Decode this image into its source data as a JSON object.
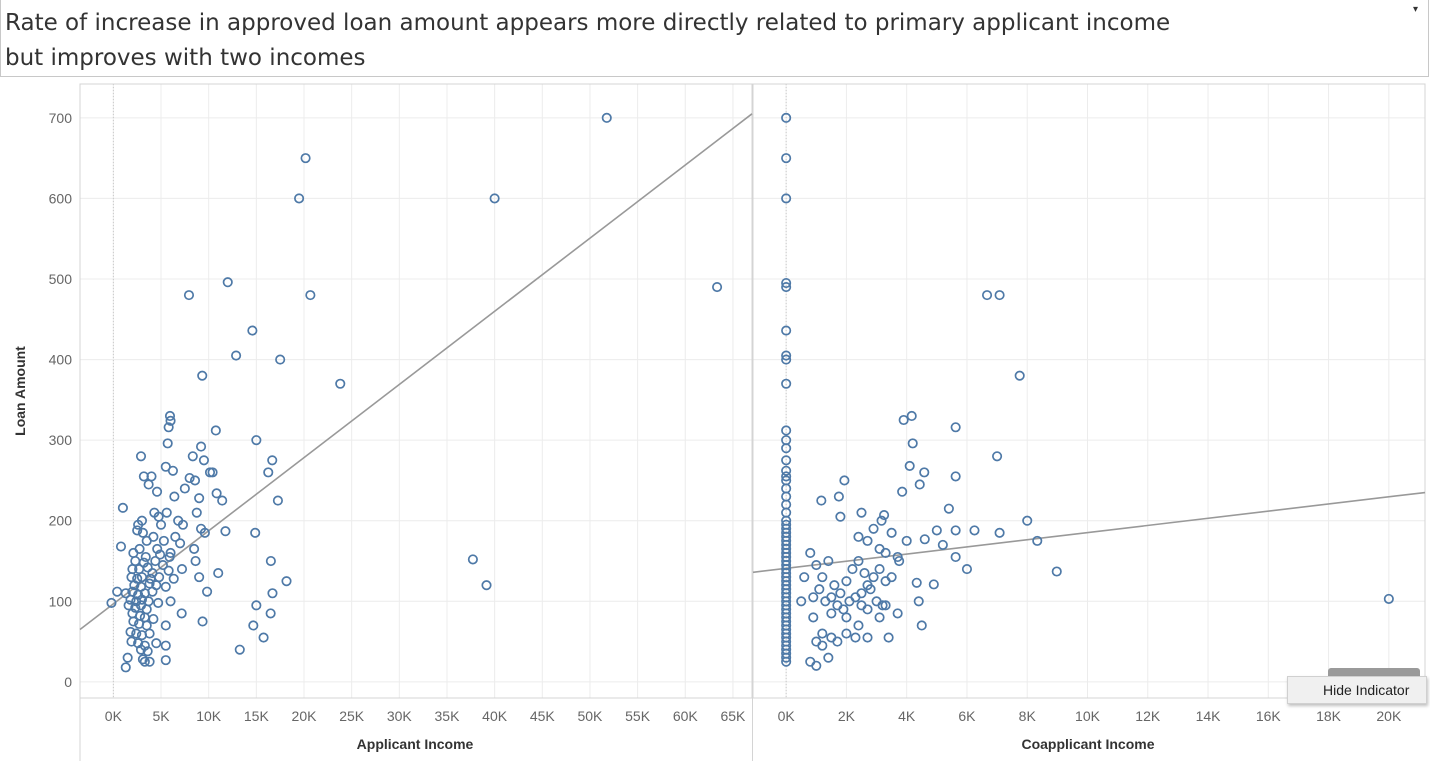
{
  "title": {
    "line1": "Rate of increase in approved loan amount appears more directly related to primary applicant income",
    "line2": "but improves with two incomes",
    "dropdown_icon": "dropdown-caret"
  },
  "hide_indicator": {
    "label": "Hide Indicator"
  },
  "colors": {
    "point": "#4e79a7",
    "trend": "#999999",
    "grid": "#ececec",
    "axis": "#d4d4d4"
  },
  "chart_data": [
    {
      "type": "scatter",
      "xlabel": "Applicant Income",
      "ylabel": "Loan Amount",
      "xlim": [
        -3500,
        67000
      ],
      "ylim": [
        -20,
        742
      ],
      "x_ticks": [
        0,
        5000,
        10000,
        15000,
        20000,
        25000,
        30000,
        35000,
        40000,
        45000,
        50000,
        55000,
        60000,
        65000
      ],
      "x_tick_labels": [
        "0K",
        "5K",
        "10K",
        "15K",
        "20K",
        "25K",
        "30K",
        "35K",
        "40K",
        "45K",
        "50K",
        "55K",
        "60K",
        "65K"
      ],
      "y_ticks": [
        0,
        100,
        200,
        300,
        400,
        500,
        600,
        700
      ],
      "y_tick_labels": [
        "0",
        "100",
        "200",
        "300",
        "400",
        "500",
        "600",
        "700"
      ],
      "grid": true,
      "trend_line": [
        [
          -3500,
          65
        ],
        [
          67000,
          705
        ]
      ],
      "points": [
        [
          51763,
          700
        ],
        [
          20166,
          650
        ],
        [
          19484,
          600
        ],
        [
          39999,
          600
        ],
        [
          12000,
          496
        ],
        [
          7933,
          480
        ],
        [
          20667,
          480
        ],
        [
          63337,
          490
        ],
        [
          14583,
          436
        ],
        [
          12876,
          405
        ],
        [
          17500,
          400
        ],
        [
          9323,
          380
        ],
        [
          23803,
          370
        ],
        [
          5941,
          330
        ],
        [
          6000,
          324
        ],
        [
          5800,
          316
        ],
        [
          10750,
          312
        ],
        [
          5700,
          296
        ],
        [
          15000,
          300
        ],
        [
          9200,
          292
        ],
        [
          2900,
          280
        ],
        [
          8333,
          280
        ],
        [
          9504,
          275
        ],
        [
          16667,
          275
        ],
        [
          5500,
          267
        ],
        [
          6250,
          262
        ],
        [
          10139,
          260
        ],
        [
          10408,
          260
        ],
        [
          16250,
          260
        ],
        [
          3200,
          255
        ],
        [
          4000,
          255
        ],
        [
          8000,
          253
        ],
        [
          8566,
          250
        ],
        [
          3700,
          245
        ],
        [
          4583,
          236
        ],
        [
          7500,
          240
        ],
        [
          10833,
          234
        ],
        [
          6400,
          230
        ],
        [
          9000,
          228
        ],
        [
          11417,
          225
        ],
        [
          17263,
          225
        ],
        [
          1000,
          216
        ],
        [
          4300,
          210
        ],
        [
          5600,
          210
        ],
        [
          8750,
          210
        ],
        [
          3000,
          200
        ],
        [
          4750,
          205
        ],
        [
          6800,
          200
        ],
        [
          2600,
          195
        ],
        [
          5000,
          195
        ],
        [
          7300,
          195
        ],
        [
          9200,
          190
        ],
        [
          2500,
          188
        ],
        [
          3100,
          185
        ],
        [
          9600,
          185
        ],
        [
          11758,
          187
        ],
        [
          14880,
          185
        ],
        [
          4200,
          180
        ],
        [
          6500,
          180
        ],
        [
          3500,
          175
        ],
        [
          5300,
          175
        ],
        [
          7000,
          172
        ],
        [
          800,
          168
        ],
        [
          2750,
          165
        ],
        [
          4600,
          165
        ],
        [
          6000,
          160
        ],
        [
          8472,
          165
        ],
        [
          2100,
          160
        ],
        [
          3400,
          155
        ],
        [
          4900,
          158
        ],
        [
          5900,
          155
        ],
        [
          16525,
          150
        ],
        [
          37719,
          152
        ],
        [
          2300,
          150
        ],
        [
          3200,
          148
        ],
        [
          4400,
          150
        ],
        [
          5200,
          145
        ],
        [
          8624,
          150
        ],
        [
          2000,
          140
        ],
        [
          2700,
          140
        ],
        [
          3600,
          142
        ],
        [
          4100,
          135
        ],
        [
          5800,
          138
        ],
        [
          7200,
          140
        ],
        [
          11000,
          135
        ],
        [
          1900,
          130
        ],
        [
          2500,
          128
        ],
        [
          3000,
          130
        ],
        [
          3900,
          128
        ],
        [
          4800,
          130
        ],
        [
          6333,
          128
        ],
        [
          9000,
          130
        ],
        [
          18165,
          125
        ],
        [
          2200,
          120
        ],
        [
          2900,
          118
        ],
        [
          3800,
          122
        ],
        [
          4500,
          120
        ],
        [
          5500,
          118
        ],
        [
          39147,
          120
        ],
        [
          1300,
          110
        ],
        [
          2000,
          112
        ],
        [
          2600,
          108
        ],
        [
          3300,
          110
        ],
        [
          4100,
          112
        ],
        [
          9833,
          112
        ],
        [
          16692,
          110
        ],
        [
          400,
          112
        ],
        [
          1800,
          102
        ],
        [
          2400,
          100
        ],
        [
          3000,
          102
        ],
        [
          3700,
          100
        ],
        [
          4700,
          98
        ],
        [
          6000,
          100
        ],
        [
          -200,
          98
        ],
        [
          1600,
          95
        ],
        [
          2300,
          92
        ],
        [
          2900,
          95
        ],
        [
          3500,
          90
        ],
        [
          14999,
          95
        ],
        [
          2000,
          85
        ],
        [
          2800,
          82
        ],
        [
          3300,
          80
        ],
        [
          4200,
          78
        ],
        [
          7167,
          85
        ],
        [
          16500,
          85
        ],
        [
          2100,
          75
        ],
        [
          2700,
          72
        ],
        [
          3500,
          70
        ],
        [
          5500,
          70
        ],
        [
          9357,
          75
        ],
        [
          14683,
          70
        ],
        [
          1800,
          62
        ],
        [
          2400,
          60
        ],
        [
          3000,
          58
        ],
        [
          3800,
          60
        ],
        [
          1900,
          50
        ],
        [
          2600,
          48
        ],
        [
          3300,
          45
        ],
        [
          4500,
          48
        ],
        [
          5500,
          45
        ],
        [
          15759,
          55
        ],
        [
          2900,
          40
        ],
        [
          3600,
          38
        ],
        [
          13262,
          40
        ],
        [
          1500,
          30
        ],
        [
          3100,
          28
        ],
        [
          3300,
          25
        ],
        [
          3800,
          25
        ],
        [
          5500,
          27
        ],
        [
          1300,
          18
        ]
      ]
    },
    {
      "type": "scatter",
      "xlabel": "Coapplicant Income",
      "ylabel": "",
      "xlim": [
        -1100,
        21200
      ],
      "ylim": [
        -20,
        742
      ],
      "x_ticks": [
        0,
        2000,
        4000,
        6000,
        8000,
        10000,
        12000,
        14000,
        16000,
        18000,
        20000
      ],
      "x_tick_labels": [
        "0K",
        "2K",
        "4K",
        "6K",
        "8K",
        "10K",
        "12K",
        "14K",
        "16K",
        "18K",
        "20K"
      ],
      "y_ticks": [
        0,
        100,
        200,
        300,
        400,
        500,
        600,
        700
      ],
      "grid": true,
      "trend_line": [
        [
          -1100,
          136
        ],
        [
          21200,
          235
        ]
      ],
      "points": [
        [
          0,
          700
        ],
        [
          0,
          650
        ],
        [
          0,
          600
        ],
        [
          0,
          495
        ],
        [
          0,
          490
        ],
        [
          0,
          436
        ],
        [
          0,
          405
        ],
        [
          0,
          400
        ],
        [
          0,
          370
        ],
        [
          0,
          312
        ],
        [
          0,
          300
        ],
        [
          0,
          290
        ],
        [
          0,
          275
        ],
        [
          0,
          262
        ],
        [
          0,
          255
        ],
        [
          0,
          250
        ],
        [
          0,
          240
        ],
        [
          0,
          230
        ],
        [
          0,
          220
        ],
        [
          0,
          210
        ],
        [
          0,
          200
        ],
        [
          0,
          195
        ],
        [
          0,
          190
        ],
        [
          0,
          185
        ],
        [
          0,
          180
        ],
        [
          0,
          175
        ],
        [
          0,
          170
        ],
        [
          0,
          165
        ],
        [
          0,
          160
        ],
        [
          0,
          155
        ],
        [
          0,
          150
        ],
        [
          0,
          145
        ],
        [
          0,
          140
        ],
        [
          0,
          135
        ],
        [
          0,
          130
        ],
        [
          0,
          125
        ],
        [
          0,
          120
        ],
        [
          0,
          115
        ],
        [
          0,
          110
        ],
        [
          0,
          105
        ],
        [
          0,
          100
        ],
        [
          0,
          95
        ],
        [
          0,
          90
        ],
        [
          0,
          85
        ],
        [
          0,
          80
        ],
        [
          0,
          75
        ],
        [
          0,
          70
        ],
        [
          0,
          65
        ],
        [
          0,
          60
        ],
        [
          0,
          55
        ],
        [
          0,
          50
        ],
        [
          0,
          45
        ],
        [
          0,
          40
        ],
        [
          0,
          35
        ],
        [
          0,
          30
        ],
        [
          0,
          25
        ],
        [
          6667,
          480
        ],
        [
          7083,
          480
        ],
        [
          7750,
          380
        ],
        [
          4167,
          330
        ],
        [
          3900,
          325
        ],
        [
          5625,
          316
        ],
        [
          4200,
          296
        ],
        [
          4100,
          268
        ],
        [
          4583,
          260
        ],
        [
          5625,
          255
        ],
        [
          7000,
          280
        ],
        [
          1933,
          250
        ],
        [
          3850,
          236
        ],
        [
          4433,
          245
        ],
        [
          5400,
          215
        ],
        [
          1167,
          225
        ],
        [
          1750,
          230
        ],
        [
          8000,
          200
        ],
        [
          3250,
          207
        ],
        [
          5000,
          188
        ],
        [
          5625,
          188
        ],
        [
          6250,
          188
        ],
        [
          7083,
          185
        ],
        [
          8333,
          175
        ],
        [
          8980,
          137
        ],
        [
          20000,
          103
        ],
        [
          3166,
          200
        ],
        [
          4000,
          175
        ],
        [
          4600,
          177
        ],
        [
          5200,
          170
        ],
        [
          5625,
          155
        ],
        [
          6000,
          140
        ],
        [
          3750,
          150
        ],
        [
          4333,
          123
        ],
        [
          4900,
          121
        ],
        [
          2500,
          210
        ],
        [
          2900,
          190
        ],
        [
          3500,
          185
        ],
        [
          1800,
          205
        ],
        [
          2400,
          180
        ],
        [
          2700,
          175
        ],
        [
          3100,
          165
        ],
        [
          3300,
          160
        ],
        [
          3700,
          155
        ],
        [
          800,
          160
        ],
        [
          1000,
          145
        ],
        [
          1200,
          130
        ],
        [
          1400,
          150
        ],
        [
          1600,
          120
        ],
        [
          1800,
          110
        ],
        [
          2000,
          125
        ],
        [
          2200,
          140
        ],
        [
          2400,
          150
        ],
        [
          2600,
          135
        ],
        [
          2800,
          115
        ],
        [
          3000,
          100
        ],
        [
          3200,
          95
        ],
        [
          1300,
          100
        ],
        [
          1500,
          105
        ],
        [
          1700,
          95
        ],
        [
          1900,
          90
        ],
        [
          2100,
          100
        ],
        [
          2300,
          105
        ],
        [
          2500,
          110
        ],
        [
          2700,
          120
        ],
        [
          2900,
          130
        ],
        [
          3100,
          140
        ],
        [
          3300,
          125
        ],
        [
          3500,
          130
        ],
        [
          1100,
          115
        ],
        [
          900,
          105
        ],
        [
          600,
          130
        ],
        [
          500,
          100
        ],
        [
          1500,
          85
        ],
        [
          2000,
          80
        ],
        [
          2400,
          70
        ],
        [
          2700,
          90
        ],
        [
          3100,
          80
        ],
        [
          3700,
          85
        ],
        [
          4400,
          100
        ],
        [
          4500,
          70
        ],
        [
          1000,
          50
        ],
        [
          1200,
          45
        ],
        [
          1500,
          55
        ],
        [
          1700,
          50
        ],
        [
          2000,
          60
        ],
        [
          2300,
          55
        ],
        [
          2700,
          55
        ],
        [
          3400,
          55
        ],
        [
          800,
          25
        ],
        [
          1000,
          20
        ],
        [
          1400,
          30
        ],
        [
          1200,
          60
        ],
        [
          900,
          80
        ],
        [
          2500,
          95
        ],
        [
          3300,
          95
        ]
      ]
    }
  ]
}
